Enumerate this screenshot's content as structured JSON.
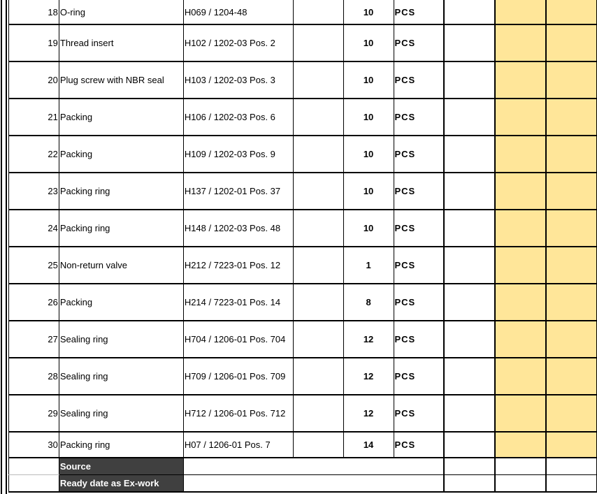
{
  "colors": {
    "highlight": "#FFE699",
    "header_dark": "#404040"
  },
  "rows": [
    {
      "no": "18",
      "description": "O-ring",
      "reference": "H069 / 1204-48",
      "qty": "10",
      "unit": "PCS"
    },
    {
      "no": "19",
      "description": "Thread insert",
      "reference": "H102 / 1202-03 Pos. 2",
      "qty": "10",
      "unit": "PCS"
    },
    {
      "no": "20",
      "description": "Plug screw with NBR seal",
      "reference": "H103 / 1202-03 Pos. 3",
      "qty": "10",
      "unit": "PCS"
    },
    {
      "no": "21",
      "description": "Packing",
      "reference": "H106 / 1202-03 Pos. 6",
      "qty": "10",
      "unit": "PCS"
    },
    {
      "no": "22",
      "description": "Packing",
      "reference": "H109 / 1202-03 Pos. 9",
      "qty": "10",
      "unit": "PCS"
    },
    {
      "no": "23",
      "description": "Packing ring",
      "reference": "H137 / 1202-01 Pos. 37",
      "qty": "10",
      "unit": "PCS"
    },
    {
      "no": "24",
      "description": "Packing ring",
      "reference": "H148 / 1202-03 Pos. 48",
      "qty": "10",
      "unit": "PCS"
    },
    {
      "no": "25",
      "description": "Non-return valve",
      "reference": "H212 / 7223-01 Pos. 12",
      "qty": "1",
      "unit": "PCS"
    },
    {
      "no": "26",
      "description": "Packing",
      "reference": "H214 / 7223-01 Pos. 14",
      "qty": "8",
      "unit": "PCS"
    },
    {
      "no": "27",
      "description": "Sealing ring",
      "reference": "H704 / 1206-01 Pos. 704",
      "qty": "12",
      "unit": "PCS"
    },
    {
      "no": "28",
      "description": "Sealing ring",
      "reference": "H709 / 1206-01 Pos. 709",
      "qty": "12",
      "unit": "PCS"
    },
    {
      "no": "29",
      "description": "Sealing ring",
      "reference": "H712 / 1206-01 Pos. 712",
      "qty": "12",
      "unit": "PCS"
    },
    {
      "no": "30",
      "description": "Packing ring",
      "reference": "H07 / 1206-01 Pos. 7",
      "qty": "14",
      "unit": "PCS"
    }
  ],
  "footer": {
    "source_label": "Source",
    "ready_label": "Ready date as Ex-work"
  }
}
